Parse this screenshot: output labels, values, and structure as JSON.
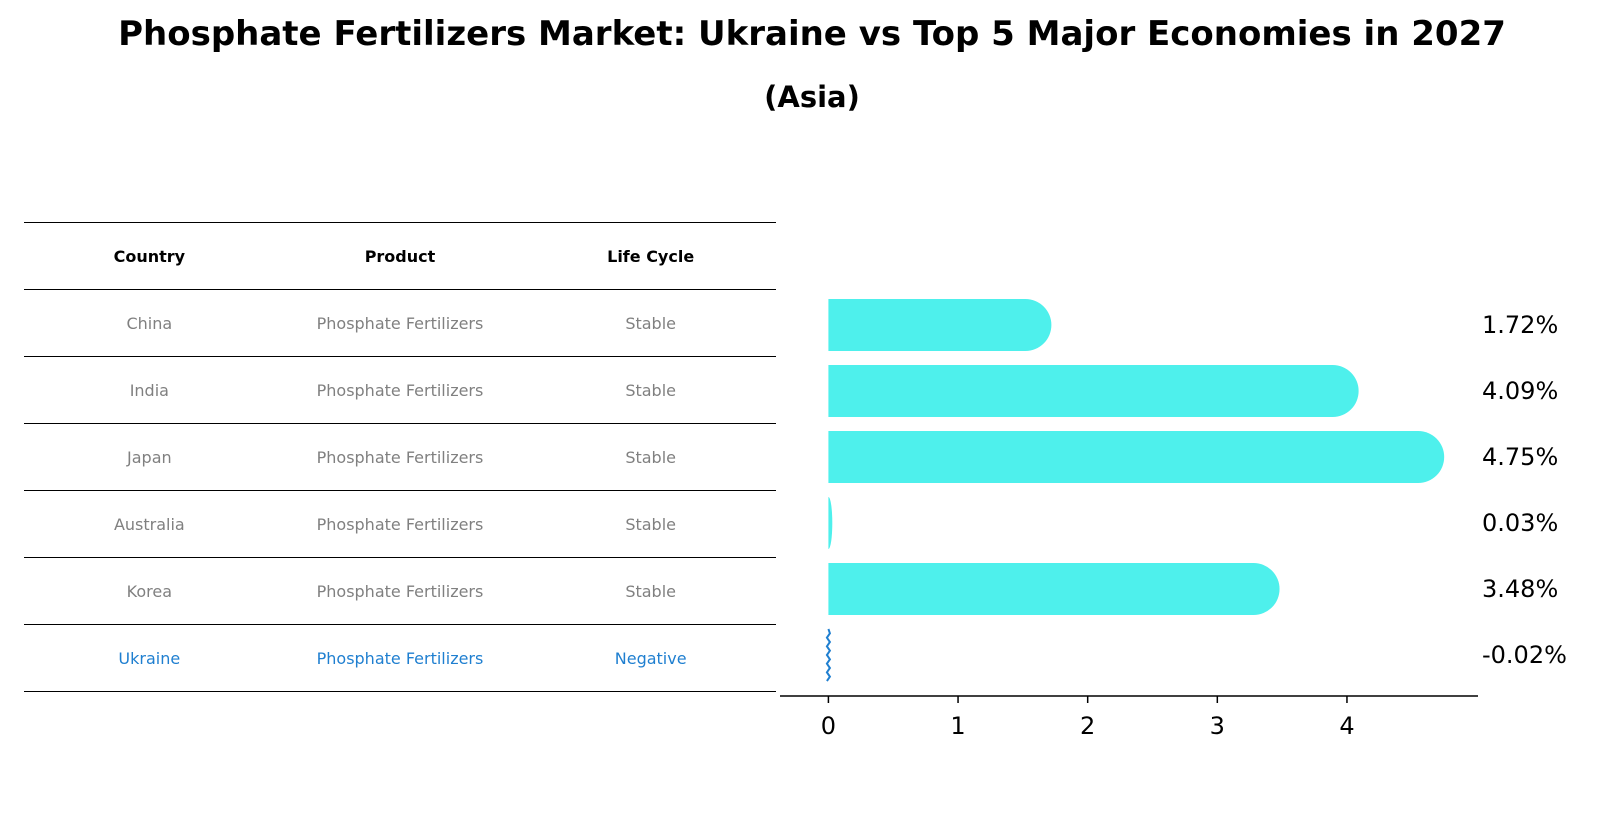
{
  "title": "Phosphate Fertilizers Market: Ukraine vs Top 5 Major Economies in 2027",
  "subtitle": "(Asia)",
  "table": {
    "headers": [
      "Country",
      "Product",
      "Life Cycle"
    ],
    "rows": [
      {
        "country": "China",
        "product": "Phosphate Fertilizers",
        "life_cycle": "Stable"
      },
      {
        "country": "India",
        "product": "Phosphate Fertilizers",
        "life_cycle": "Stable"
      },
      {
        "country": "Japan",
        "product": "Phosphate Fertilizers",
        "life_cycle": "Stable"
      },
      {
        "country": "Australia",
        "product": "Phosphate Fertilizers",
        "life_cycle": "Stable"
      },
      {
        "country": "Korea",
        "product": "Phosphate Fertilizers",
        "life_cycle": "Stable"
      },
      {
        "country": "Ukraine",
        "product": "Phosphate Fertilizers",
        "life_cycle": "Negative"
      }
    ]
  },
  "colors": {
    "bar": "#4ef0ec",
    "highlight": "#1f7fd0",
    "row_text": "#808080",
    "axis": "#000000"
  },
  "chart_data": {
    "type": "bar",
    "orientation": "horizontal",
    "categories": [
      "China",
      "India",
      "Japan",
      "Australia",
      "Korea",
      "Ukraine"
    ],
    "values": [
      1.72,
      4.09,
      4.75,
      0.03,
      3.48,
      -0.02
    ],
    "value_labels": [
      "1.72%",
      "4.09%",
      "4.75%",
      "0.03%",
      "3.48%",
      "-0.02%"
    ],
    "xlim": [
      -0.25,
      4.98
    ],
    "xticks": [
      0,
      1,
      2,
      3,
      4
    ],
    "title": "",
    "xlabel": "",
    "ylabel": "",
    "grid": false,
    "legend": "none"
  }
}
